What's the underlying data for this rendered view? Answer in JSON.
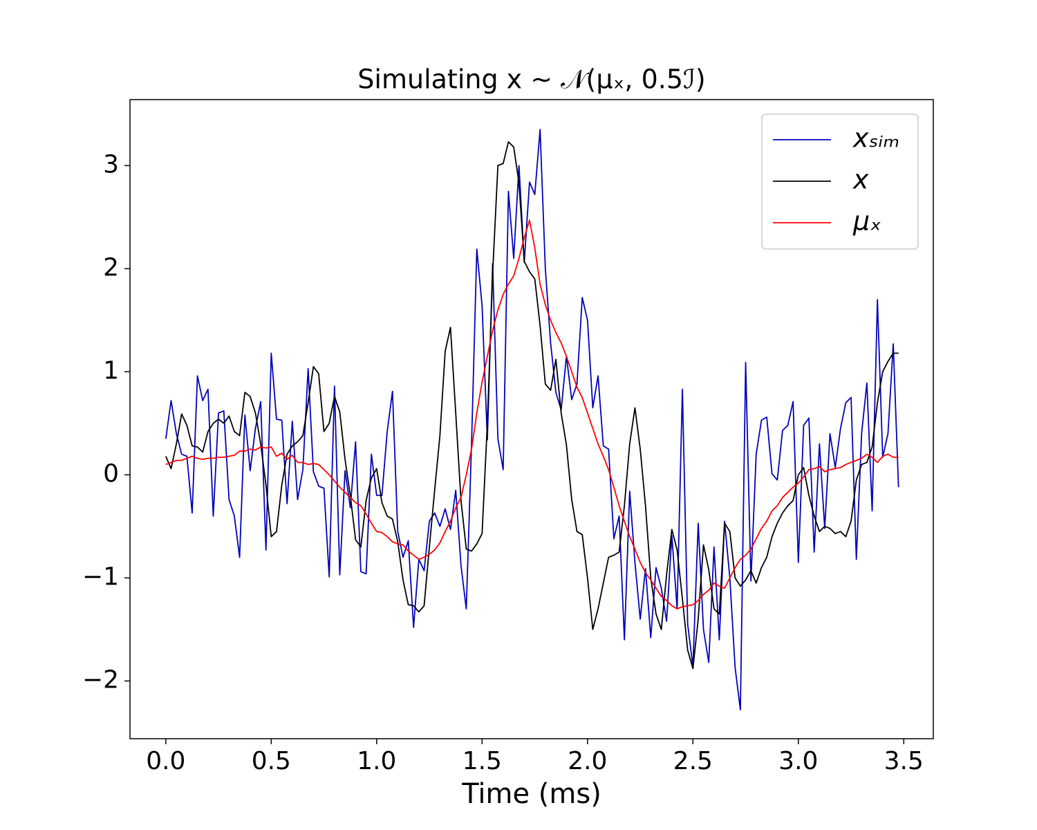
{
  "chart_data": {
    "type": "line",
    "title": "Simulating x ∼ 𝒩(μₓ, 0.5ℐ)",
    "x_label": "Time (ms)",
    "x": [
      0,
      0.025,
      0.05,
      0.075,
      0.1,
      0.125,
      0.15,
      0.175,
      0.2,
      0.225,
      0.25,
      0.275,
      0.3,
      0.325,
      0.35,
      0.375,
      0.4,
      0.425,
      0.45,
      0.475,
      0.5,
      0.525,
      0.55,
      0.575,
      0.6,
      0.625,
      0.65,
      0.675,
      0.7,
      0.725,
      0.75,
      0.775,
      0.8,
      0.825,
      0.85,
      0.875,
      0.9,
      0.925,
      0.95,
      0.975,
      1,
      1.025,
      1.05,
      1.075,
      1.1,
      1.125,
      1.15,
      1.175,
      1.2,
      1.225,
      1.25,
      1.275,
      1.3,
      1.325,
      1.35,
      1.375,
      1.4,
      1.425,
      1.45,
      1.475,
      1.5,
      1.525,
      1.55,
      1.575,
      1.6,
      1.625,
      1.65,
      1.675,
      1.7,
      1.725,
      1.75,
      1.775,
      1.8,
      1.825,
      1.85,
      1.875,
      1.9,
      1.925,
      1.95,
      1.975,
      2,
      2.025,
      2.05,
      2.075,
      2.1,
      2.125,
      2.15,
      2.175,
      2.2,
      2.225,
      2.25,
      2.275,
      2.3,
      2.325,
      2.35,
      2.375,
      2.4,
      2.425,
      2.45,
      2.475,
      2.5,
      2.525,
      2.55,
      2.575,
      2.6,
      2.625,
      2.65,
      2.675,
      2.7,
      2.725,
      2.75,
      2.775,
      2.8,
      2.825,
      2.85,
      2.875,
      2.9,
      2.925,
      2.95,
      2.975,
      3,
      3.025,
      3.05,
      3.075,
      3.1,
      3.125,
      3.15,
      3.175,
      3.2,
      3.225,
      3.25,
      3.275,
      3.3,
      3.325,
      3.35,
      3.375,
      3.4,
      3.425,
      3.45,
      3.475
    ],
    "series": [
      {
        "name": "xₛᵢₘ",
        "color": "#0000bb",
        "values": [
          0.35,
          0.72,
          0.4,
          0.2,
          0.18,
          -0.37,
          0.96,
          0.72,
          0.83,
          -0.4,
          0.6,
          0.62,
          -0.24,
          -0.4,
          -0.8,
          0.58,
          0.04,
          0.45,
          0.71,
          -0.73,
          1.18,
          0.54,
          0.53,
          -0.28,
          0.52,
          -0.24,
          0.05,
          1.03,
          0.03,
          -0.11,
          -0.13,
          -0.99,
          0.86,
          -0.97,
          0.04,
          -0.32,
          0.32,
          -0.94,
          -0.96,
          0.2,
          -0.2,
          -0.2,
          0.42,
          0.81,
          -0.55,
          -0.8,
          -0.64,
          -1.48,
          -0.82,
          -0.93,
          -0.45,
          -0.37,
          -0.5,
          -0.33,
          -0.53,
          -0.15,
          -0.88,
          -1.3,
          0.3,
          2.19,
          1.64,
          0.34,
          2.05,
          0.35,
          0.05,
          2.75,
          2.1,
          3.0,
          2.06,
          2.84,
          2.72,
          3.35,
          2.0,
          1.28,
          0.8,
          0.63,
          1.15,
          0.73,
          0.88,
          1.72,
          1.5,
          0.65,
          0.96,
          0.28,
          0.25,
          -0.62,
          -0.4,
          -1.6,
          -0.16,
          -0.85,
          -1.4,
          -0.91,
          -1.58,
          -0.9,
          -1.1,
          -1.42,
          -0.59,
          -1.3,
          0.83,
          -1.45,
          -1.86,
          -0.47,
          -1.5,
          -1.82,
          -0.7,
          -1.6,
          -0.45,
          -1.0,
          -1.87,
          -2.28,
          1.09,
          -1.03,
          0.2,
          0.53,
          0.56,
          0.01,
          -0.05,
          0.43,
          0.48,
          0.71,
          -0.85,
          0.48,
          0.55,
          -0.75,
          0.3,
          -0.52,
          0.4,
          0.07,
          0.45,
          0.7,
          0.75,
          -0.82,
          0.4,
          0.89,
          -0.35,
          1.7,
          0.17,
          0.4,
          1.27,
          -0.12
        ]
      },
      {
        "name": "x",
        "color": "#000000",
        "values": [
          0.18,
          0.06,
          0.3,
          0.59,
          0.48,
          0.28,
          0.27,
          0.22,
          0.42,
          0.5,
          0.54,
          0.5,
          0.57,
          0.42,
          0.38,
          0.8,
          0.76,
          0.6,
          0.3,
          -0.1,
          -0.6,
          -0.55,
          -0.1,
          0.2,
          0.28,
          0.32,
          0.38,
          0.7,
          1.05,
          0.98,
          0.42,
          0.5,
          0.76,
          0.61,
          0.15,
          -0.2,
          -0.63,
          -0.7,
          -0.25,
          -0.03,
          0.06,
          -0.27,
          -0.4,
          -0.43,
          -0.65,
          -1.02,
          -1.26,
          -1.27,
          -1.33,
          -1.27,
          -0.7,
          -0.15,
          0.38,
          1.2,
          1.43,
          0.6,
          -0.25,
          -0.72,
          -0.74,
          -0.67,
          -0.57,
          0.5,
          1.95,
          3.0,
          3.02,
          3.23,
          3.18,
          2.83,
          2.07,
          1.97,
          1.9,
          1.45,
          0.88,
          0.82,
          1.12,
          0.6,
          0.29,
          -0.24,
          -0.55,
          -0.58,
          -1.0,
          -1.5,
          -1.3,
          -1.05,
          -0.8,
          -0.78,
          -0.75,
          -0.3,
          0.3,
          0.65,
          0.25,
          -0.3,
          -1.0,
          -1.35,
          -1.5,
          -0.97,
          -0.53,
          -0.73,
          -1.2,
          -1.7,
          -1.88,
          -1.4,
          -0.68,
          -0.92,
          -1.3,
          -1.35,
          -0.47,
          -0.55,
          -1.0,
          -1.08,
          -1.02,
          -0.93,
          -1.05,
          -0.9,
          -0.8,
          -0.6,
          -0.47,
          -0.37,
          -0.3,
          -0.25,
          0.0,
          0.07,
          -0.2,
          -0.4,
          -0.55,
          -0.5,
          -0.52,
          -0.57,
          -0.55,
          -0.6,
          -0.45,
          -0.05,
          0.1,
          0.12,
          0.27,
          0.7,
          1.0,
          1.1,
          1.18,
          1.18
        ]
      },
      {
        "name": "μₓ",
        "color": "#ff0000",
        "values": [
          0.1,
          0.12,
          0.14,
          0.14,
          0.16,
          0.18,
          0.16,
          0.15,
          0.16,
          0.16,
          0.17,
          0.17,
          0.18,
          0.19,
          0.23,
          0.23,
          0.25,
          0.24,
          0.27,
          0.26,
          0.27,
          0.18,
          0.21,
          0.15,
          0.19,
          0.12,
          0.12,
          0.1,
          0.11,
          0.1,
          0.05,
          0.0,
          -0.06,
          -0.12,
          -0.17,
          -0.22,
          -0.27,
          -0.3,
          -0.38,
          -0.47,
          -0.55,
          -0.56,
          -0.6,
          -0.65,
          -0.67,
          -0.68,
          -0.74,
          -0.78,
          -0.82,
          -0.8,
          -0.77,
          -0.73,
          -0.66,
          -0.55,
          -0.45,
          -0.32,
          -0.22,
          0.0,
          0.25,
          0.6,
          0.9,
          1.15,
          1.4,
          1.6,
          1.75,
          1.85,
          1.93,
          2.1,
          2.3,
          2.47,
          2.2,
          1.85,
          1.65,
          1.5,
          1.38,
          1.28,
          1.15,
          1.0,
          0.85,
          0.75,
          0.6,
          0.45,
          0.3,
          0.18,
          0.05,
          -0.12,
          -0.3,
          -0.45,
          -0.6,
          -0.72,
          -0.85,
          -0.95,
          -1.02,
          -1.1,
          -1.18,
          -1.22,
          -1.27,
          -1.3,
          -1.28,
          -1.27,
          -1.26,
          -1.22,
          -1.16,
          -1.12,
          -1.05,
          -1.08,
          -1.1,
          -1.0,
          -0.9,
          -0.82,
          -0.78,
          -0.72,
          -0.62,
          -0.52,
          -0.45,
          -0.35,
          -0.3,
          -0.22,
          -0.17,
          -0.12,
          -0.08,
          -0.02,
          0.05,
          0.06,
          0.08,
          0.03,
          0.05,
          0.06,
          0.07,
          0.1,
          0.12,
          0.14,
          0.16,
          0.2,
          0.17,
          0.12,
          0.18,
          0.2,
          0.17,
          0.17
        ]
      }
    ],
    "xlim": [
      -0.17,
      3.64
    ],
    "ylim": [
      -2.56,
      3.64
    ],
    "xticks": [
      {
        "value": 0,
        "label": "0.0"
      },
      0.5,
      {
        "value": 1,
        "label": "1.0"
      },
      1.5,
      {
        "value": 2,
        "label": "2.0"
      },
      2.5,
      {
        "value": 3,
        "label": "3.0"
      },
      3.5
    ],
    "yticks": [
      {
        "value": -2,
        "label": "−2"
      },
      {
        "value": -1,
        "label": "−1"
      },
      0,
      1,
      2,
      3
    ],
    "grid": false,
    "legend": "upper right"
  }
}
